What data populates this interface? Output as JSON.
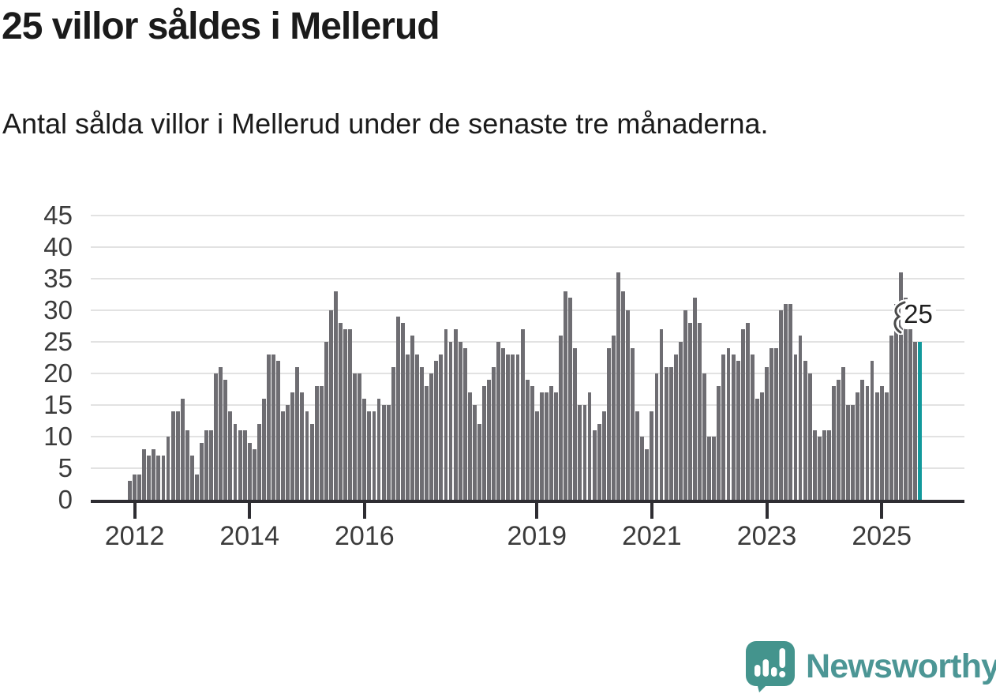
{
  "header": {
    "title": "25 villor såldes i Mellerud",
    "subtitle": "Antal sålda villor i Mellerud under de senaste tre månaderna."
  },
  "chart_data": {
    "type": "bar",
    "title": "25 villor såldes i Mellerud",
    "subtitle": "Antal sålda villor i Mellerud under de senaste tre månaderna.",
    "xlabel": "",
    "ylabel": "",
    "x_unit": "month",
    "ylim": [
      0,
      45
    ],
    "y_ticks": [
      0,
      5,
      10,
      15,
      20,
      25,
      30,
      35,
      40,
      45
    ],
    "grid": true,
    "x_tick_labels": [
      "2012",
      "2014",
      "2016",
      "2019",
      "2021",
      "2023",
      "2025"
    ],
    "x_tick_month_indices": [
      1,
      25,
      49,
      85,
      109,
      133,
      157
    ],
    "values": [
      3,
      4,
      4,
      8,
      7,
      8,
      7,
      7,
      10,
      14,
      14,
      16,
      11,
      7,
      4,
      9,
      11,
      11,
      20,
      21,
      19,
      14,
      12,
      11,
      11,
      9,
      8,
      12,
      16,
      23,
      23,
      22,
      14,
      15,
      17,
      21,
      17,
      14,
      12,
      18,
      18,
      25,
      30,
      33,
      28,
      27,
      27,
      20,
      20,
      16,
      14,
      14,
      16,
      15,
      15,
      21,
      29,
      28,
      23,
      26,
      23,
      21,
      18,
      20,
      22,
      23,
      27,
      25,
      27,
      25,
      24,
      17,
      15,
      12,
      18,
      19,
      21,
      25,
      24,
      23,
      23,
      23,
      27,
      19,
      18,
      14,
      17,
      17,
      18,
      17,
      26,
      33,
      32,
      24,
      15,
      15,
      17,
      11,
      12,
      14,
      24,
      26,
      36,
      33,
      30,
      24,
      14,
      10,
      8,
      14,
      20,
      27,
      21,
      21,
      23,
      25,
      30,
      28,
      32,
      28,
      20,
      10,
      10,
      18,
      23,
      24,
      23,
      22,
      27,
      28,
      23,
      16,
      17,
      21,
      24,
      24,
      30,
      31,
      31,
      23,
      26,
      22,
      20,
      11,
      10,
      11,
      11,
      18,
      19,
      21,
      15,
      15,
      17,
      19,
      18,
      22,
      17,
      18,
      17,
      26,
      31,
      36,
      32,
      27,
      25,
      25
    ],
    "highlight_last_bar": true,
    "annotation": {
      "value_label": "25",
      "points_to": "last-bar"
    },
    "colors": {
      "bar": "#6E6D72",
      "highlight": "#12999C",
      "grid": "#E2E2E2",
      "axis": "#2E2D32",
      "tick_text": "#3B3B3B"
    }
  },
  "branding": {
    "name": "Newsworthy",
    "text_color": "#4C9695",
    "logo_color": "#44948D"
  }
}
